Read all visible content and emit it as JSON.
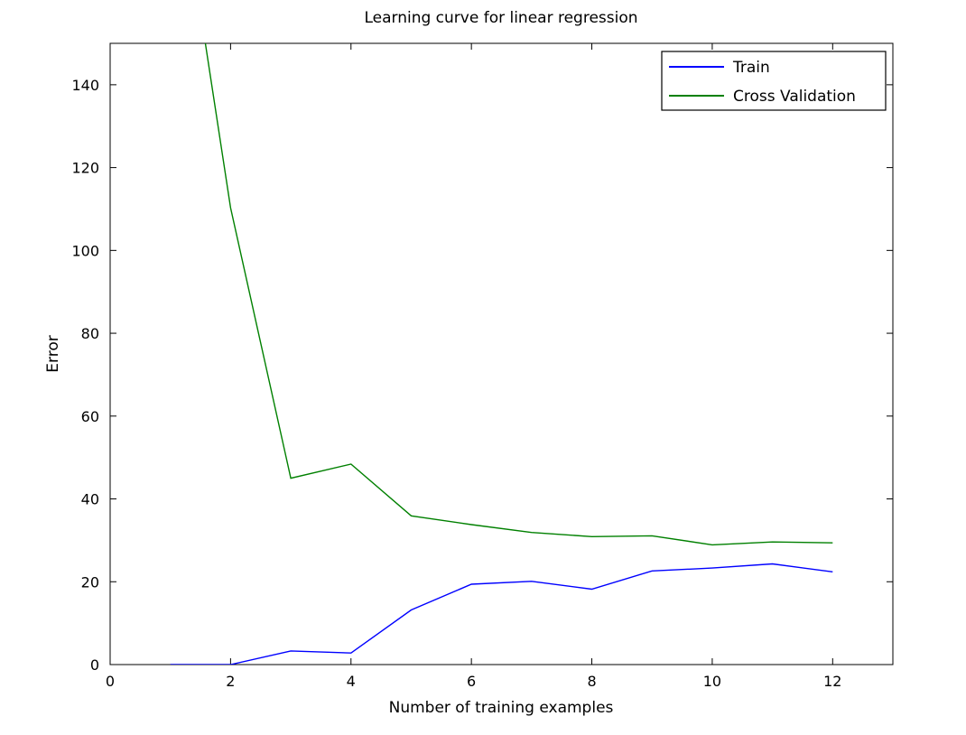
{
  "chart_data": {
    "type": "line",
    "title": "Learning curve for linear regression",
    "xlabel": "Number of training examples",
    "ylabel": "Error",
    "xlim": [
      0,
      13
    ],
    "ylim": [
      0,
      150
    ],
    "xticks": [
      0,
      2,
      4,
      6,
      8,
      10,
      12
    ],
    "yticks": [
      0,
      20,
      40,
      60,
      80,
      100,
      120,
      140
    ],
    "grid": false,
    "legend_position": "top-right",
    "x": [
      1,
      2,
      3,
      4,
      5,
      6,
      7,
      8,
      9,
      10,
      11,
      12
    ],
    "series": [
      {
        "name": "Train",
        "color": "#0000ff",
        "values": [
          0.0,
          0.0,
          3.3,
          2.8,
          13.2,
          19.4,
          20.1,
          18.2,
          22.6,
          23.3,
          24.3,
          22.4
        ]
      },
      {
        "name": "Cross Validation",
        "color": "#008000",
        "values": [
          205.1,
          110.3,
          45.0,
          48.4,
          35.9,
          33.8,
          31.9,
          30.9,
          31.1,
          28.9,
          29.6,
          29.4
        ]
      }
    ]
  }
}
